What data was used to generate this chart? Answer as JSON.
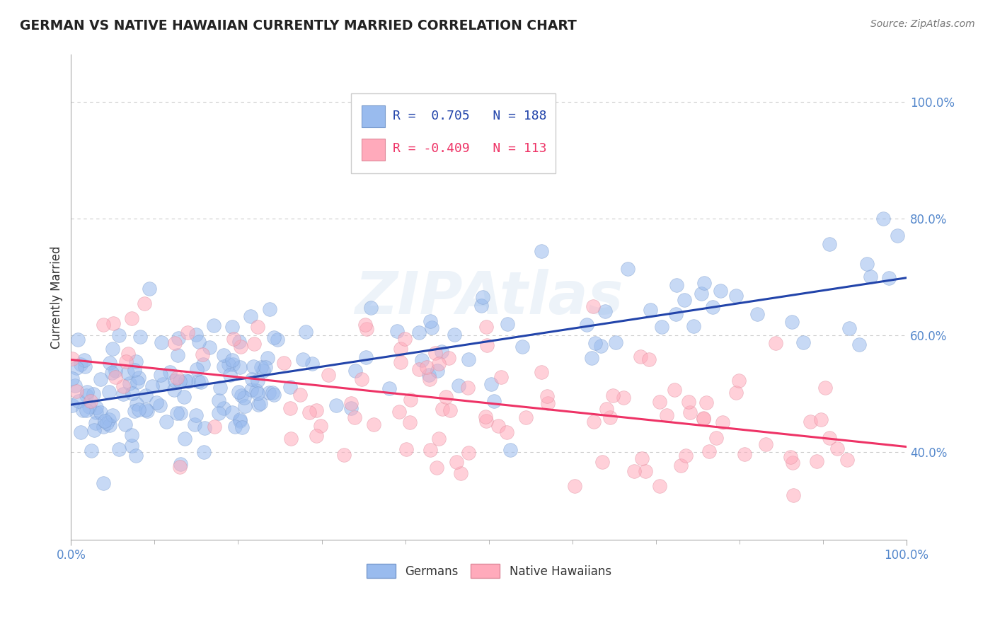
{
  "title": "GERMAN VS NATIVE HAWAIIAN CURRENTLY MARRIED CORRELATION CHART",
  "source": "Source: ZipAtlas.com",
  "ylabel": "Currently Married",
  "watermark": "ZIPAtlas",
  "legend_blue_label": "Germans",
  "legend_pink_label": "Native Hawaiians",
  "blue_R": 0.705,
  "blue_N": 188,
  "pink_R": -0.409,
  "pink_N": 113,
  "blue_color": "#99BBEE",
  "pink_color": "#FFAABB",
  "blue_line_color": "#2244AA",
  "pink_line_color": "#EE3366",
  "xlim": [
    0.0,
    1.0
  ],
  "ylim": [
    0.25,
    1.08
  ],
  "x_tick_labels": [
    "0.0%",
    "100.0%"
  ],
  "y_tick_labels": [
    "40.0%",
    "60.0%",
    "80.0%",
    "100.0%"
  ],
  "y_tick_vals": [
    0.4,
    0.6,
    0.8,
    1.0
  ],
  "blue_seed": 42,
  "pink_seed": 7
}
